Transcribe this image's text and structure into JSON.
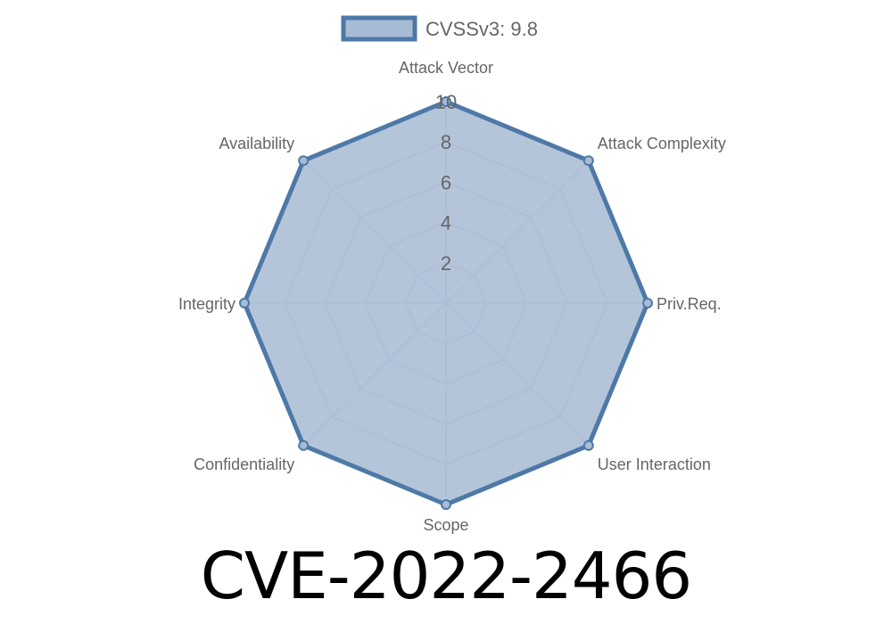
{
  "chart_data": {
    "type": "radar",
    "title": "CVE-2022-2466",
    "categories": [
      "Attack Vector",
      "Attack Complexity",
      "Priv.Req.",
      "User Interaction",
      "Scope",
      "Confidentiality",
      "Integrity",
      "Availability"
    ],
    "series": [
      {
        "name": "CVSSv3: 9.8",
        "values": [
          10,
          10,
          10,
          10,
          10,
          10,
          10,
          10
        ]
      }
    ],
    "r_ticks": [
      "2",
      "4",
      "6",
      "8",
      "10"
    ],
    "rlim": [
      0,
      10
    ],
    "grid": true,
    "legend": "top",
    "colors": {
      "stroke": "#4e79a7",
      "fill": "#a7bbd4",
      "grid": "#c8ced6"
    }
  }
}
